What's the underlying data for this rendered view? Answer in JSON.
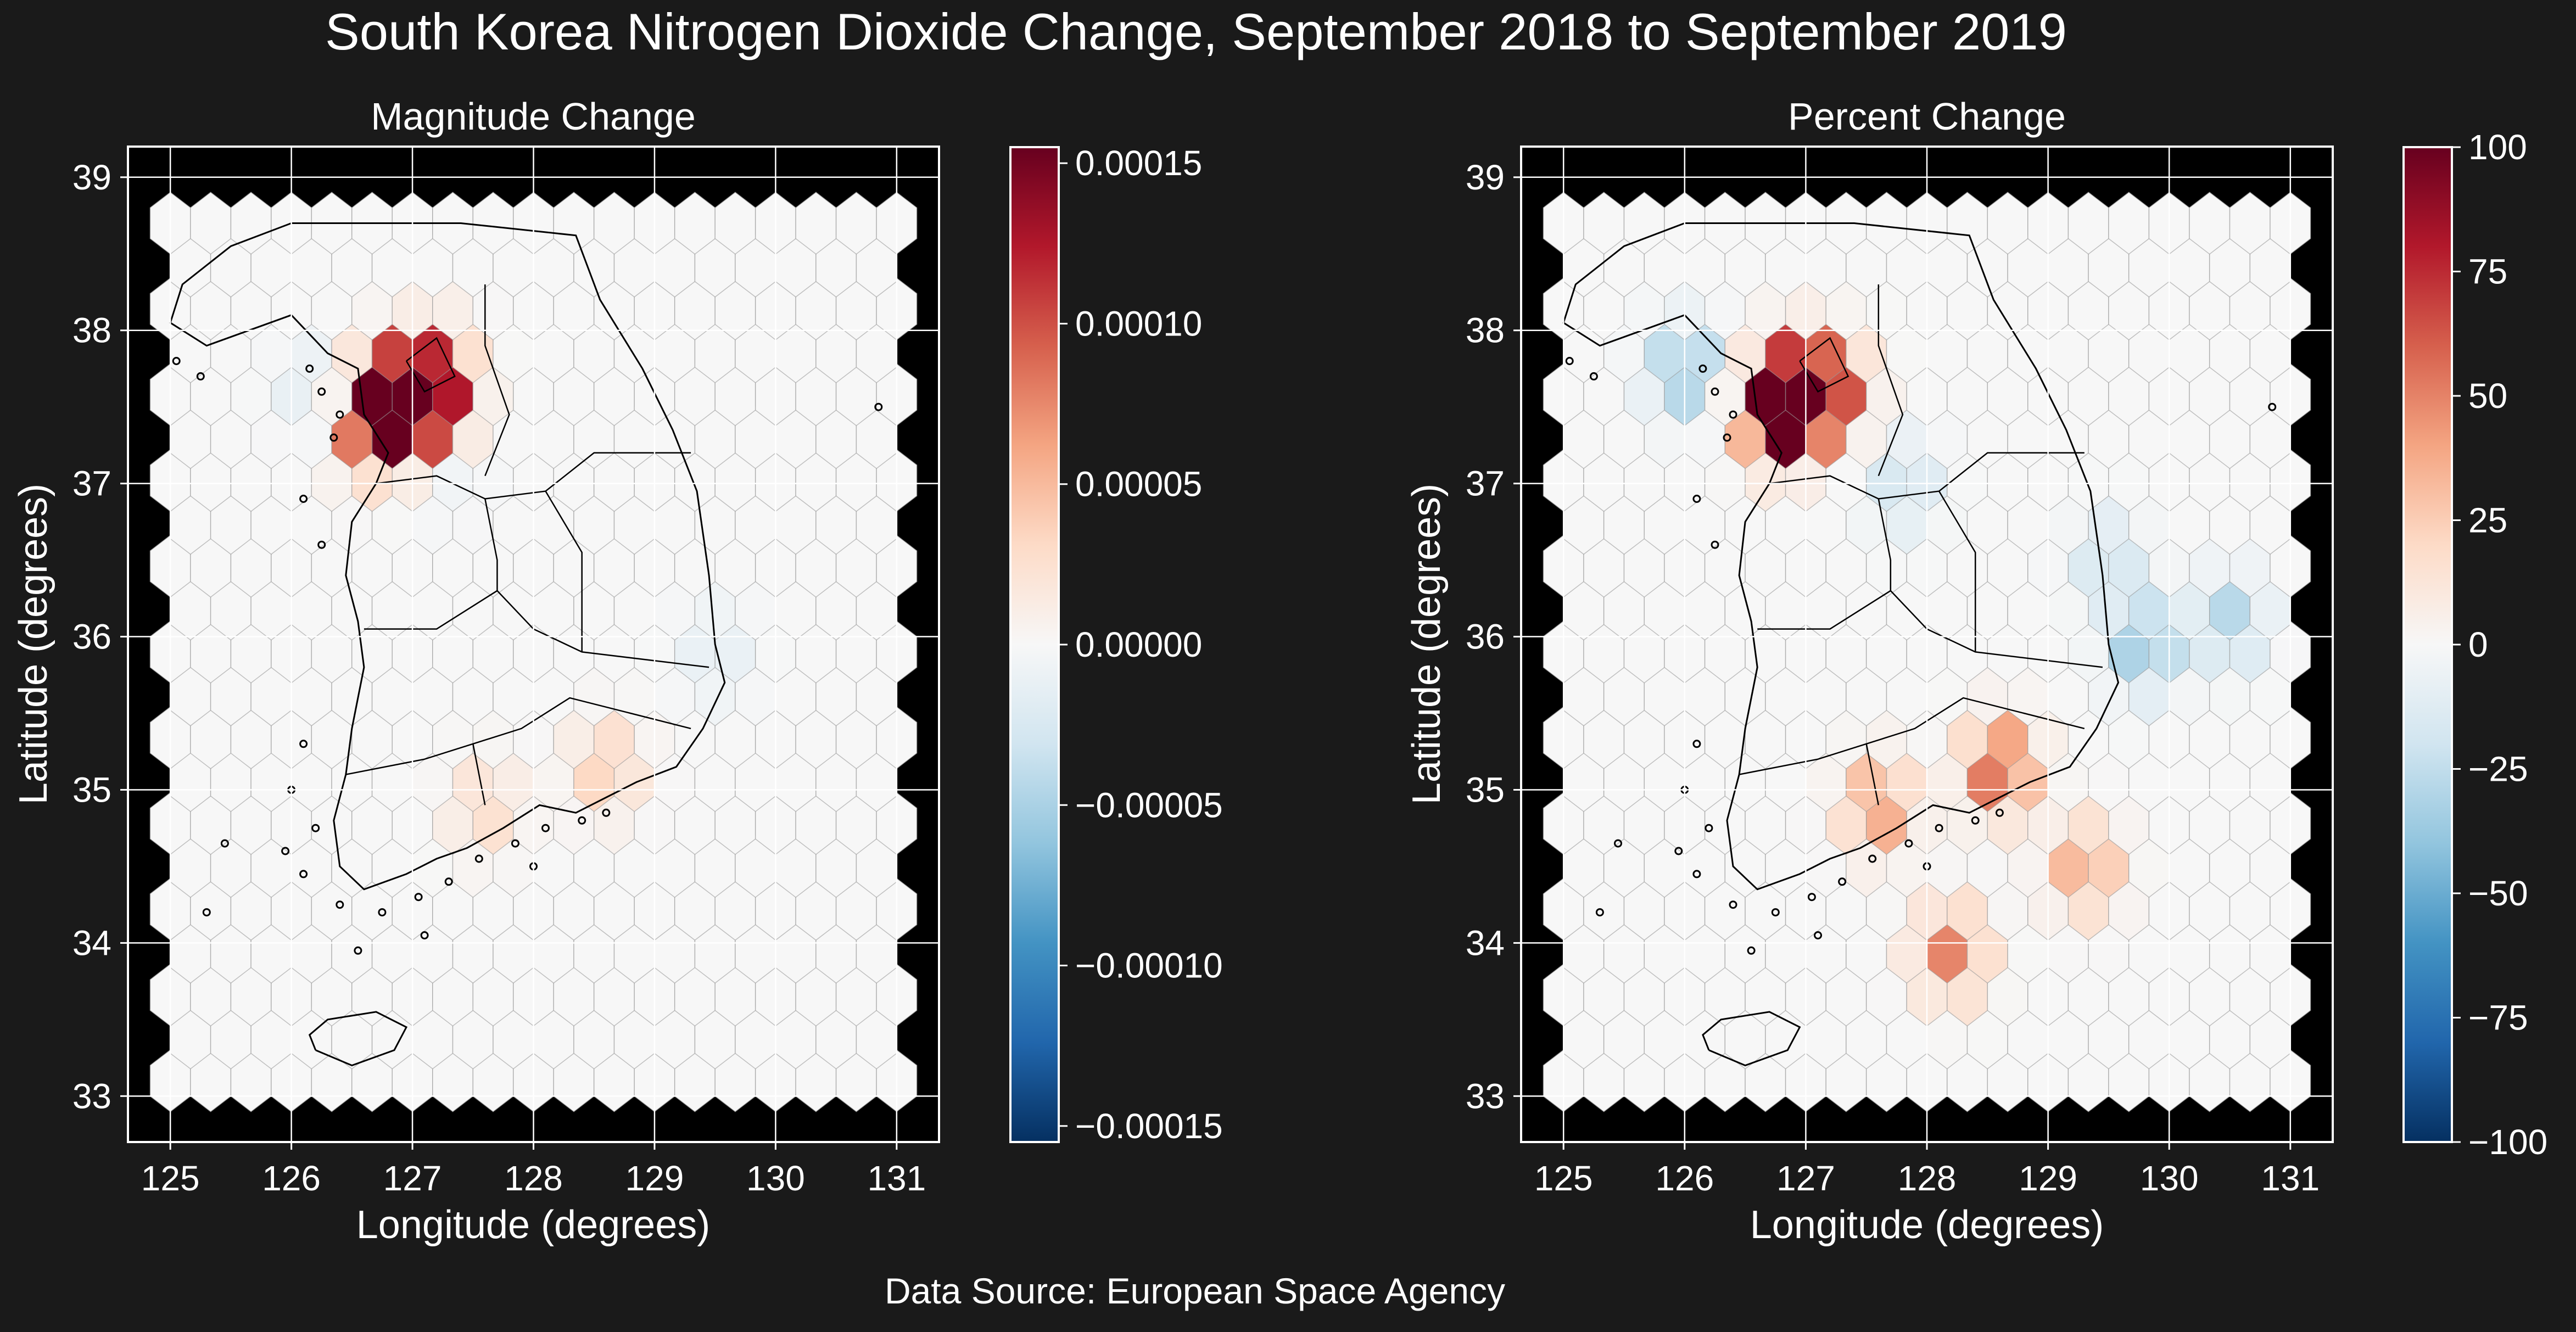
{
  "figure": {
    "title": "South Korea Nitrogen Dioxide Change, September 2018 to September 2019",
    "source": "Data Source: European Space Agency",
    "background": "#1a1a1a"
  },
  "colormap": {
    "name": "RdBu_r",
    "stops": [
      "#053061",
      "#2166ac",
      "#4393c3",
      "#92c5de",
      "#d1e5f0",
      "#f7f7f7",
      "#fddbc7",
      "#f4a582",
      "#d6604d",
      "#b2182b",
      "#67001f"
    ]
  },
  "panels": [
    {
      "id": "magnitude",
      "title": "Magnitude Change",
      "xlabel": "Longitude (degrees)",
      "ylabel": "Latitude (degrees)",
      "xlim": [
        124.65,
        131.35
      ],
      "ylim": [
        32.7,
        39.2
      ],
      "xticks": [
        "125",
        "126",
        "127",
        "128",
        "129",
        "130",
        "131"
      ],
      "yticks": [
        "33",
        "34",
        "35",
        "36",
        "37",
        "38",
        "39"
      ],
      "colorbar": {
        "min": -0.000155,
        "max": 0.000155,
        "ticks": [
          "0.00015",
          "0.00010",
          "0.00005",
          "0.00000",
          "−0.00005",
          "−0.00010",
          "−0.00015"
        ],
        "tick_values": [
          0.00015,
          0.0001,
          5e-05,
          0,
          -5e-05,
          -0.0001,
          -0.00015
        ]
      }
    },
    {
      "id": "percent",
      "title": "Percent Change",
      "xlabel": "Longitude (degrees)",
      "ylabel": "Latitude (degrees)",
      "xlim": [
        124.65,
        131.35
      ],
      "ylim": [
        32.7,
        39.2
      ],
      "xticks": [
        "125",
        "126",
        "127",
        "128",
        "129",
        "130",
        "131"
      ],
      "yticks": [
        "33",
        "34",
        "35",
        "36",
        "37",
        "38",
        "39"
      ],
      "colorbar": {
        "min": -100,
        "max": 100,
        "ticks": [
          "100",
          "75",
          "50",
          "25",
          "0",
          "−25",
          "−50",
          "−75",
          "−100"
        ],
        "tick_values": [
          100,
          75,
          50,
          25,
          0,
          -25,
          -50,
          -75,
          -100
        ]
      }
    }
  ],
  "chart_data": [
    {
      "type": "hexbin",
      "title": "Magnitude Change",
      "xlabel": "Longitude (degrees)",
      "ylabel": "Latitude (degrees)",
      "xlim": [
        124.65,
        131.35
      ],
      "ylim": [
        32.7,
        39.2
      ],
      "value_range": [
        -0.000155,
        0.000155
      ],
      "grid_extent": {
        "lon": [
          125.0,
          131.0
        ],
        "lat": [
          33.1,
          38.7
        ]
      },
      "hotspots": [
        {
          "lon": 127.0,
          "lat": 37.55,
          "value": 0.000155
        },
        {
          "lon": 126.75,
          "lat": 37.45,
          "value": 0.00015
        },
        {
          "lon": 126.85,
          "lat": 37.65,
          "value": 8e-05
        },
        {
          "lon": 127.2,
          "lat": 37.75,
          "value": 7e-05
        },
        {
          "lon": 127.2,
          "lat": 37.5,
          "value": 6e-05
        },
        {
          "lon": 126.6,
          "lat": 37.3,
          "value": 3e-05
        },
        {
          "lon": 128.6,
          "lat": 35.15,
          "value": 4e-05
        },
        {
          "lon": 127.6,
          "lat": 34.9,
          "value": 3e-05
        },
        {
          "lon": 126.2,
          "lat": 37.6,
          "value": -2e-05
        },
        {
          "lon": 129.5,
          "lat": 35.9,
          "value": -1.5e-05
        },
        {
          "lon": 127.3,
          "lat": 37.1,
          "value": -1e-05
        }
      ]
    },
    {
      "type": "hexbin",
      "title": "Percent Change",
      "xlabel": "Longitude (degrees)",
      "ylabel": "Latitude (degrees)",
      "xlim": [
        124.65,
        131.35
      ],
      "ylim": [
        32.7,
        39.2
      ],
      "value_range": [
        -100,
        100
      ],
      "grid_extent": {
        "lon": [
          125.0,
          131.0
        ],
        "lat": [
          33.1,
          38.7
        ]
      },
      "hotspots": [
        {
          "lon": 127.0,
          "lat": 37.55,
          "value": 100
        },
        {
          "lon": 126.75,
          "lat": 37.45,
          "value": 90
        },
        {
          "lon": 126.9,
          "lat": 37.7,
          "value": 55
        },
        {
          "lon": 127.25,
          "lat": 37.65,
          "value": 40
        },
        {
          "lon": 128.6,
          "lat": 35.15,
          "value": 65
        },
        {
          "lon": 127.6,
          "lat": 34.9,
          "value": 45
        },
        {
          "lon": 128.2,
          "lat": 33.95,
          "value": 50
        },
        {
          "lon": 129.3,
          "lat": 34.5,
          "value": 40
        },
        {
          "lon": 126.0,
          "lat": 37.75,
          "value": -40
        },
        {
          "lon": 129.8,
          "lat": 35.95,
          "value": -40
        },
        {
          "lon": 130.5,
          "lat": 36.1,
          "value": -30
        },
        {
          "lon": 129.5,
          "lat": 36.5,
          "value": -20
        },
        {
          "lon": 127.8,
          "lat": 37.0,
          "value": -20
        }
      ]
    }
  ]
}
